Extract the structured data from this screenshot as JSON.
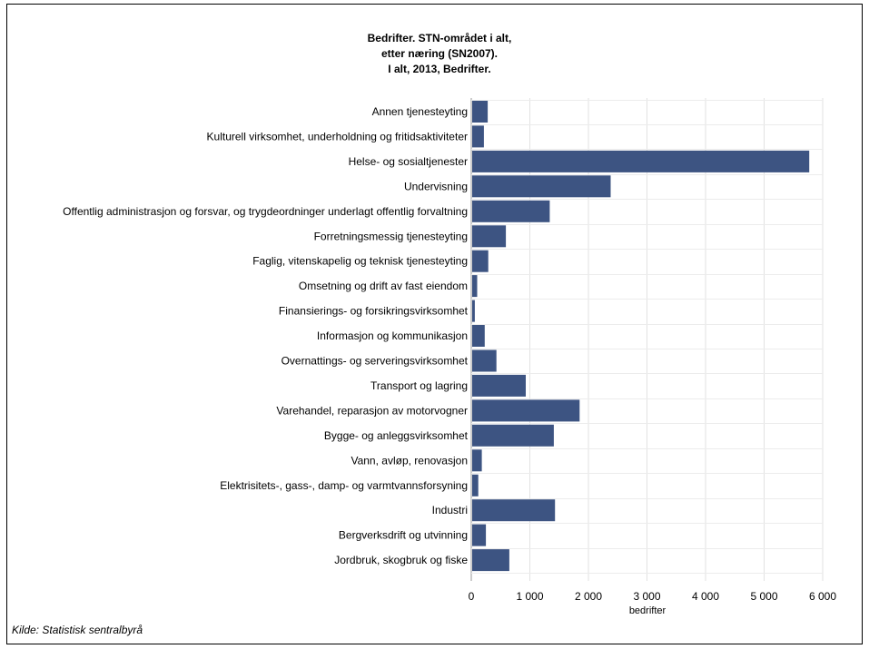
{
  "chart_data": {
    "type": "bar",
    "orientation": "horizontal",
    "title_lines": [
      "Bedrifter. STN-området i alt,",
      "etter næring (SN2007).",
      "I alt, 2013, Bedrifter."
    ],
    "xlabel": "bedrifter",
    "ylabel": "",
    "xlim": [
      0,
      6000
    ],
    "xticks": [
      0,
      1000,
      2000,
      3000,
      4000,
      5000,
      6000
    ],
    "xtick_labels": [
      "0",
      "1 000",
      "2 000",
      "3 000",
      "4 000",
      "5 000",
      "6 000"
    ],
    "grid": true,
    "bar_color": "#3d5482",
    "categories": [
      "Annen tjenesteyting",
      "Kulturell virksomhet, underholdning og fritidsaktiviteter",
      "Helse- og sosialtjenester",
      "Undervisning",
      "Offentlig administrasjon og forsvar, og trygdeordninger underlagt offentlig forvaltning",
      "Forretningsmessig tjenesteyting",
      "Faglig, vitenskapelig og teknisk tjenesteyting",
      "Omsetning og drift av fast eiendom",
      "Finansierings- og forsikringsvirksomhet",
      "Informasjon og kommunikasjon",
      "Overnattings- og serveringsvirksomhet",
      "Transport og lagring",
      "Varehandel, reparasjon av motorvogner",
      "Bygge- og anleggsvirksomhet",
      "Vann, avløp, renovasjon",
      "Elektrisitets-, gass-, damp- og varmtvannsforsyning",
      "Industri",
      "Bergverksdrift og utvinning",
      "Jordbruk, skogbruk og fiske"
    ],
    "values": [
      280,
      215,
      5770,
      2380,
      1340,
      590,
      290,
      100,
      60,
      230,
      430,
      930,
      1850,
      1410,
      180,
      120,
      1430,
      250,
      650
    ]
  },
  "source": "Kilde: Statistisk sentralbyrå"
}
